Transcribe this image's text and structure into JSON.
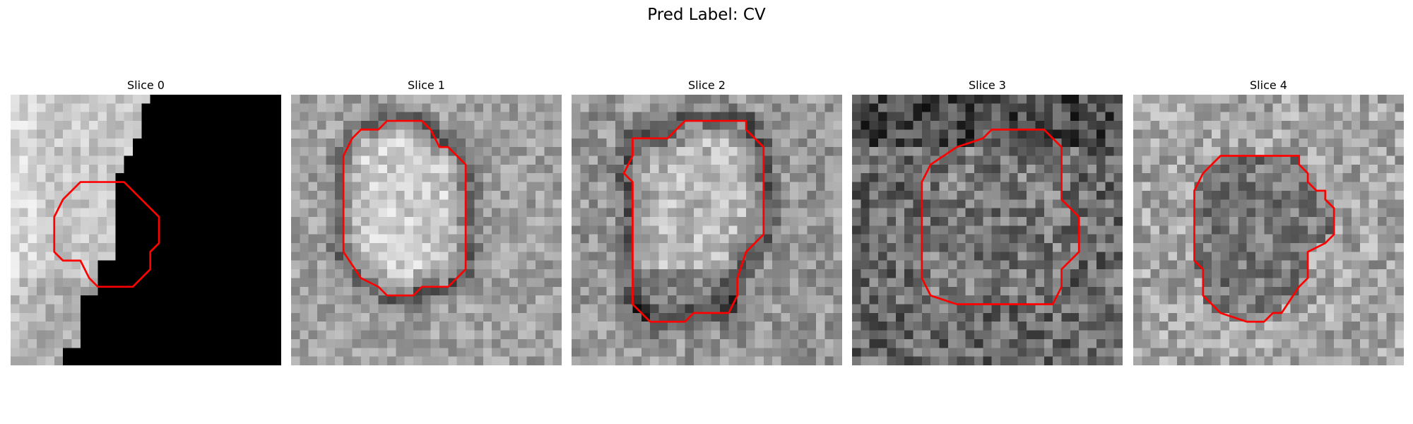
{
  "figure": {
    "title": "Pred Label: CV",
    "contour_color": "#ff0000",
    "slices": [
      {
        "title": "Slice 0"
      },
      {
        "title": "Slice 1"
      },
      {
        "title": "Slice 2"
      },
      {
        "title": "Slice 3"
      },
      {
        "title": "Slice 4"
      }
    ]
  }
}
